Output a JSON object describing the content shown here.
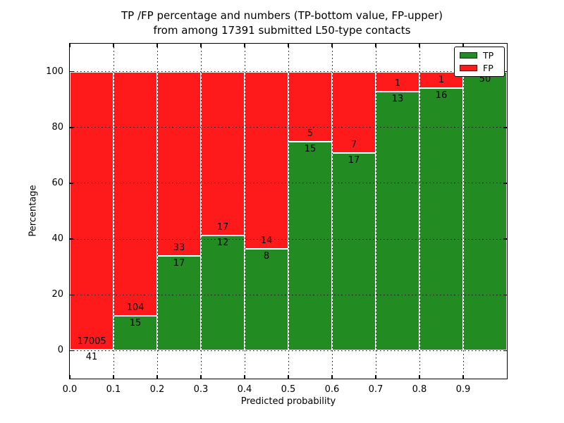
{
  "figure": {
    "title_line1": "TP /FP percentage and numbers (TP-bottom value, FP-upper)",
    "title_line2": "from among 17391 submitted L50-type contacts"
  },
  "chart_data": {
    "type": "bar",
    "stacked": true,
    "normalized_to_percent": true,
    "title": "TP /FP percentage and numbers (TP-bottom value, FP-upper)\nfrom among 17391 submitted L50-type contacts",
    "xlabel": "Predicted probability",
    "ylabel": "Percentage",
    "xlim": [
      0.0,
      1.0
    ],
    "ylim": [
      -10,
      110
    ],
    "x_ticks": [
      "0.0",
      "0.1",
      "0.2",
      "0.3",
      "0.4",
      "0.5",
      "0.6",
      "0.7",
      "0.8",
      "0.9"
    ],
    "y_ticks": [
      0,
      20,
      40,
      60,
      80,
      100
    ],
    "grid": "dotted",
    "total_contacts": 17391,
    "categories": [
      "0.0-0.1",
      "0.1-0.2",
      "0.2-0.3",
      "0.3-0.4",
      "0.4-0.5",
      "0.5-0.6",
      "0.6-0.7",
      "0.7-0.8",
      "0.8-0.9",
      "0.9-1.0"
    ],
    "series": [
      {
        "name": "TP",
        "color": "#228b22",
        "values": [
          41,
          15,
          17,
          12,
          8,
          15,
          17,
          13,
          16,
          50
        ]
      },
      {
        "name": "FP",
        "color": "#fe1a1a",
        "values": [
          17005,
          104,
          33,
          17,
          14,
          5,
          7,
          1,
          1,
          0
        ]
      }
    ],
    "tp_percent_est": [
      0.24,
      12.61,
      34.0,
      41.38,
      36.36,
      75.0,
      70.83,
      92.86,
      94.12,
      100.0
    ],
    "bar_edge_color": "#ffffff",
    "legend": {
      "position": "upper right",
      "entries": [
        {
          "label": "TP",
          "color": "#228b22"
        },
        {
          "label": "FP",
          "color": "#fe1a1a"
        }
      ]
    }
  }
}
